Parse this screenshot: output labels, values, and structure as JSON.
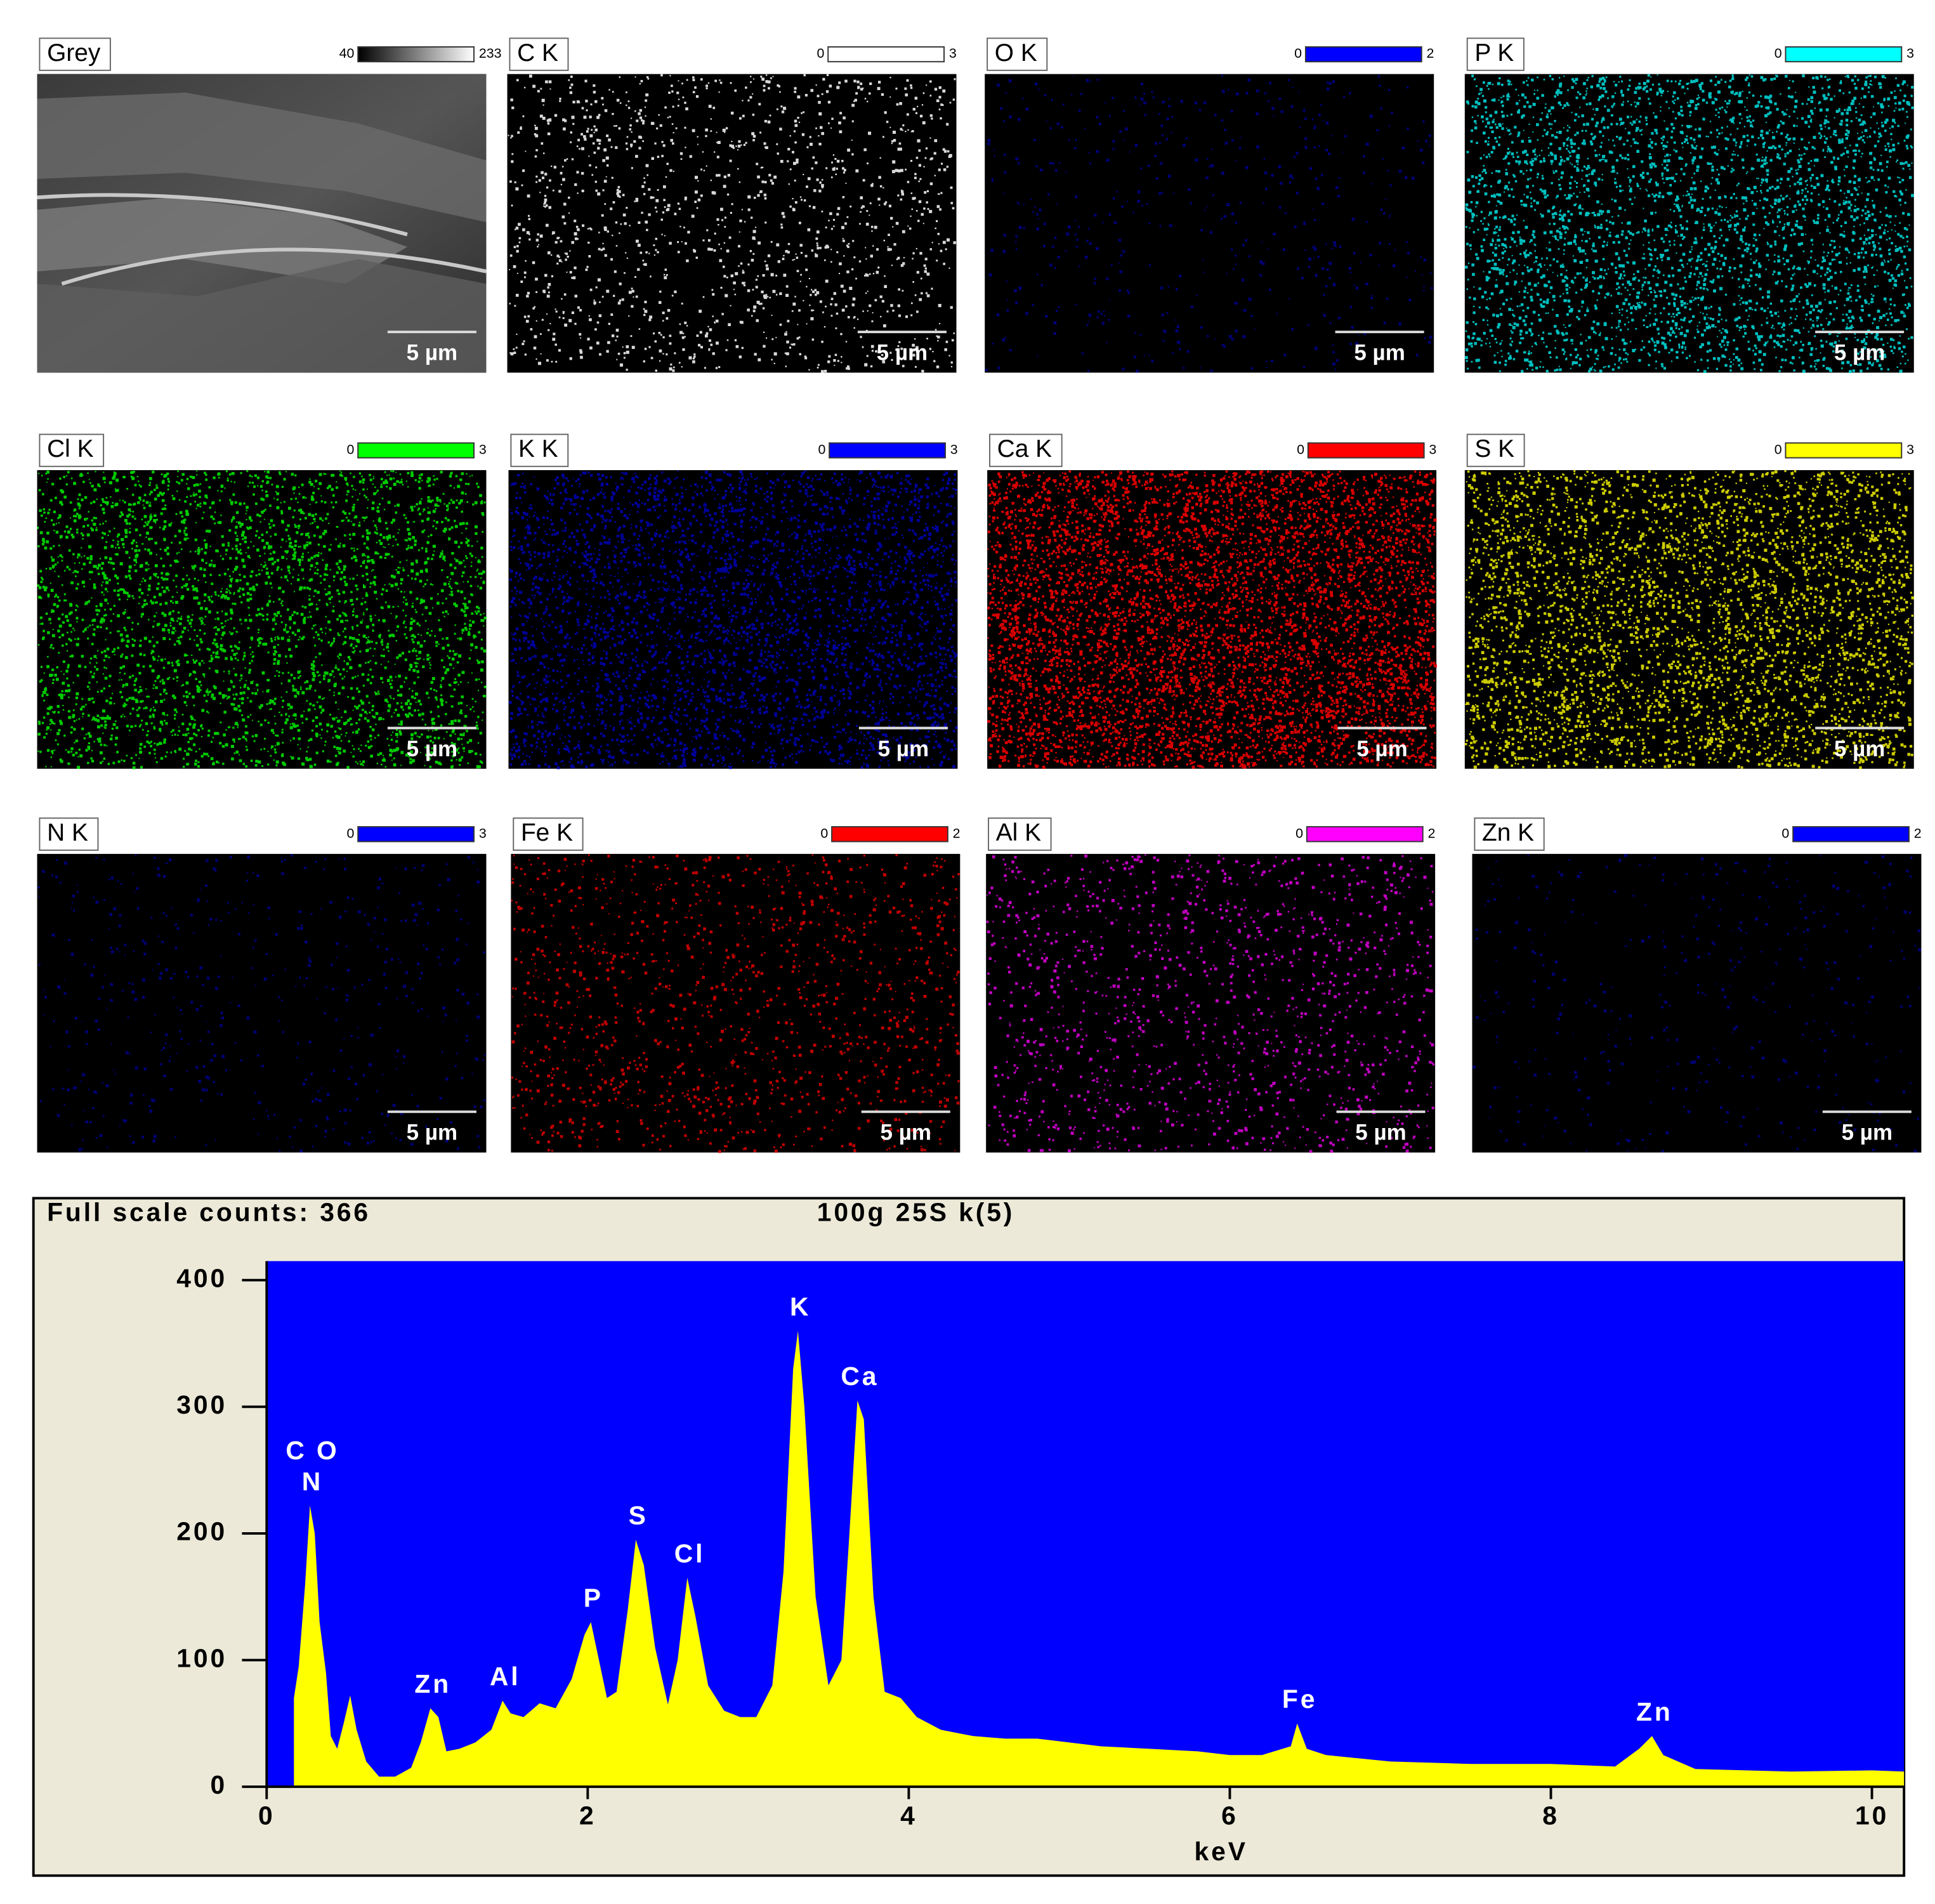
{
  "maps": [
    {
      "label": "Grey",
      "scale_min": 40,
      "scale_max": 233,
      "color_ramp": [
        "#000000",
        "#ffffff"
      ],
      "scale_bar": "5 µm"
    },
    {
      "label": "C K",
      "scale_min": 0,
      "scale_max": 3,
      "color": "#ffffff",
      "scale_bar": "5 µm"
    },
    {
      "label": "O K",
      "scale_min": 0,
      "scale_max": 2,
      "color": "#0000ff",
      "scale_bar": "5 µm"
    },
    {
      "label": "P K",
      "scale_min": 0,
      "scale_max": 3,
      "color": "#00ffff",
      "scale_bar": "5 µm"
    },
    {
      "label": "Cl K",
      "scale_min": 0,
      "scale_max": 3,
      "color": "#00ff00",
      "scale_bar": "5 µm"
    },
    {
      "label": "K K",
      "scale_min": 0,
      "scale_max": 3,
      "color": "#0000ff",
      "scale_bar": "5 µm"
    },
    {
      "label": "Ca K",
      "scale_min": 0,
      "scale_max": 3,
      "color": "#ff0000",
      "scale_bar": "5 µm"
    },
    {
      "label": "S K",
      "scale_min": 0,
      "scale_max": 3,
      "color": "#ffff00",
      "scale_bar": "5 µm"
    },
    {
      "label": "N K",
      "scale_min": 0,
      "scale_max": 3,
      "color": "#0000ff",
      "scale_bar": "5 µm"
    },
    {
      "label": "Fe K",
      "scale_min": 0,
      "scale_max": 2,
      "color": "#ff0000",
      "scale_bar": "5 µm"
    },
    {
      "label": "Al K",
      "scale_min": 0,
      "scale_max": 2,
      "color": "#ff00ff",
      "scale_bar": "5 µm"
    },
    {
      "label": "Zn K",
      "scale_min": 0,
      "scale_max": 2,
      "color": "#0000ff",
      "scale_bar": "5 µm"
    }
  ],
  "chart_data": {
    "type": "area",
    "title": "Full scale counts: 366",
    "subtitle": "100g 25S k(5)",
    "x_label": "keV",
    "color": "#ffff00",
    "plot_color": "#0000ff",
    "frame_color": "#ece9d8",
    "x": [
      0.17,
      0.2,
      0.24,
      0.27,
      0.3,
      0.33,
      0.37,
      0.4,
      0.44,
      0.48,
      0.52,
      0.56,
      0.62,
      0.7,
      0.8,
      0.9,
      0.96,
      1.02,
      1.07,
      1.12,
      1.2,
      1.3,
      1.4,
      1.47,
      1.52,
      1.6,
      1.7,
      1.8,
      1.9,
      1.98,
      2.02,
      2.07,
      2.12,
      2.18,
      2.25,
      2.3,
      2.35,
      2.42,
      2.5,
      2.56,
      2.62,
      2.67,
      2.75,
      2.85,
      2.95,
      3.05,
      3.15,
      3.22,
      3.28,
      3.31,
      3.35,
      3.42,
      3.5,
      3.58,
      3.63,
      3.68,
      3.72,
      3.78,
      3.85,
      3.95,
      4.05,
      4.2,
      4.4,
      4.6,
      4.8,
      5.0,
      5.2,
      5.5,
      5.8,
      6.0,
      6.2,
      6.38,
      6.42,
      6.48,
      6.6,
      7.0,
      7.5,
      8.0,
      8.4,
      8.55,
      8.63,
      8.7,
      8.9,
      9.5,
      10.0,
      10.2
    ],
    "values": [
      70,
      95,
      160,
      222,
      200,
      130,
      90,
      40,
      30,
      50,
      72,
      45,
      20,
      8,
      8,
      15,
      35,
      62,
      55,
      28,
      30,
      35,
      45,
      68,
      58,
      55,
      66,
      62,
      85,
      120,
      130,
      100,
      70,
      75,
      140,
      195,
      175,
      110,
      65,
      100,
      165,
      135,
      80,
      60,
      55,
      55,
      80,
      170,
      330,
      360,
      300,
      150,
      80,
      100,
      200,
      305,
      290,
      150,
      75,
      70,
      55,
      45,
      40,
      38,
      38,
      35,
      32,
      30,
      28,
      25,
      25,
      32,
      50,
      30,
      25,
      20,
      18,
      18,
      16,
      30,
      40,
      25,
      14,
      12,
      13,
      12
    ],
    "annotations": [
      {
        "lines": [
          "C O",
          "N"
        ],
        "x": 0.27
      },
      {
        "lines": [
          "Zn"
        ],
        "x": 1.02
      },
      {
        "lines": [
          "Al"
        ],
        "x": 1.47
      },
      {
        "lines": [
          "P"
        ],
        "x": 2.02
      },
      {
        "lines": [
          "S"
        ],
        "x": 2.3
      },
      {
        "lines": [
          "Cl"
        ],
        "x": 2.62
      },
      {
        "lines": [
          "K"
        ],
        "x": 3.31
      },
      {
        "lines": [
          "Ca"
        ],
        "x": 3.68
      },
      {
        "lines": [
          "Fe"
        ],
        "x": 6.42
      },
      {
        "lines": [
          "Zn"
        ],
        "x": 8.63
      }
    ],
    "xlim": [
      0,
      10.2
    ],
    "ylim": [
      0,
      415
    ],
    "xticks": [
      0,
      2,
      4,
      6,
      8,
      10
    ],
    "yticks": [
      0,
      100,
      200,
      300,
      400
    ]
  }
}
